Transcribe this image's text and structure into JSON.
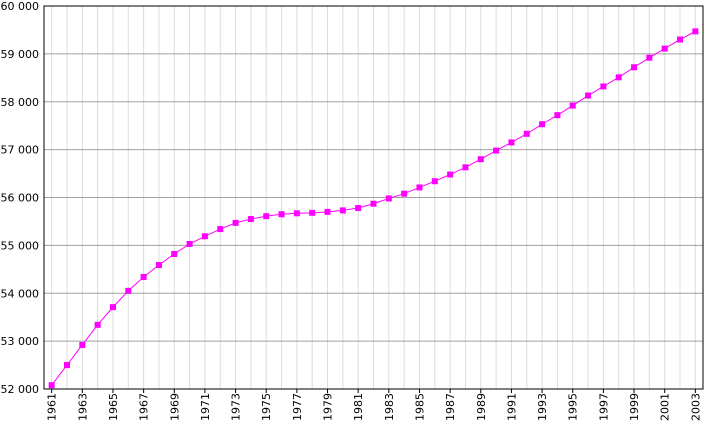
{
  "chart_data": {
    "type": "line",
    "x": [
      1961,
      1962,
      1963,
      1964,
      1965,
      1966,
      1967,
      1968,
      1969,
      1970,
      1971,
      1972,
      1973,
      1974,
      1975,
      1976,
      1977,
      1978,
      1979,
      1980,
      1981,
      1982,
      1983,
      1984,
      1985,
      1986,
      1987,
      1988,
      1989,
      1990,
      1991,
      1992,
      1993,
      1994,
      1995,
      1996,
      1997,
      1998,
      1999,
      2000,
      2001,
      2002,
      2003
    ],
    "series": [
      {
        "color": "#ff00ff",
        "values": [
          52080,
          52500,
          52920,
          53340,
          53710,
          54050,
          54340,
          54590,
          54820,
          55030,
          55190,
          55340,
          55470,
          55550,
          55610,
          55650,
          55670,
          55680,
          55700,
          55730,
          55780,
          55870,
          55980,
          56080,
          56210,
          56340,
          56480,
          56630,
          56800,
          56980,
          57150,
          57330,
          57530,
          57720,
          57920,
          58130,
          58320,
          58510,
          58720,
          58920,
          59110,
          59300,
          59470
        ]
      }
    ],
    "xlim": [
      1960.5,
      2003.5
    ],
    "xticks": [
      1961,
      1963,
      1965,
      1967,
      1969,
      1971,
      1973,
      1975,
      1977,
      1979,
      1981,
      1983,
      1985,
      1987,
      1989,
      1991,
      1993,
      1995,
      1997,
      1999,
      2001,
      2003
    ],
    "ylim": [
      52000,
      60000
    ],
    "yticks": [
      {
        "value": 52000,
        "label": "52 000"
      },
      {
        "value": 53000,
        "label": "53 000"
      },
      {
        "value": 54000,
        "label": "54 000"
      },
      {
        "value": 55000,
        "label": "55 000"
      },
      {
        "value": 56000,
        "label": "56 000"
      },
      {
        "value": 57000,
        "label": "57 000"
      },
      {
        "value": 58000,
        "label": "58 000"
      },
      {
        "value": 59000,
        "label": "59 000"
      },
      {
        "value": 60000,
        "label": "60 000"
      }
    ],
    "grid": true
  }
}
